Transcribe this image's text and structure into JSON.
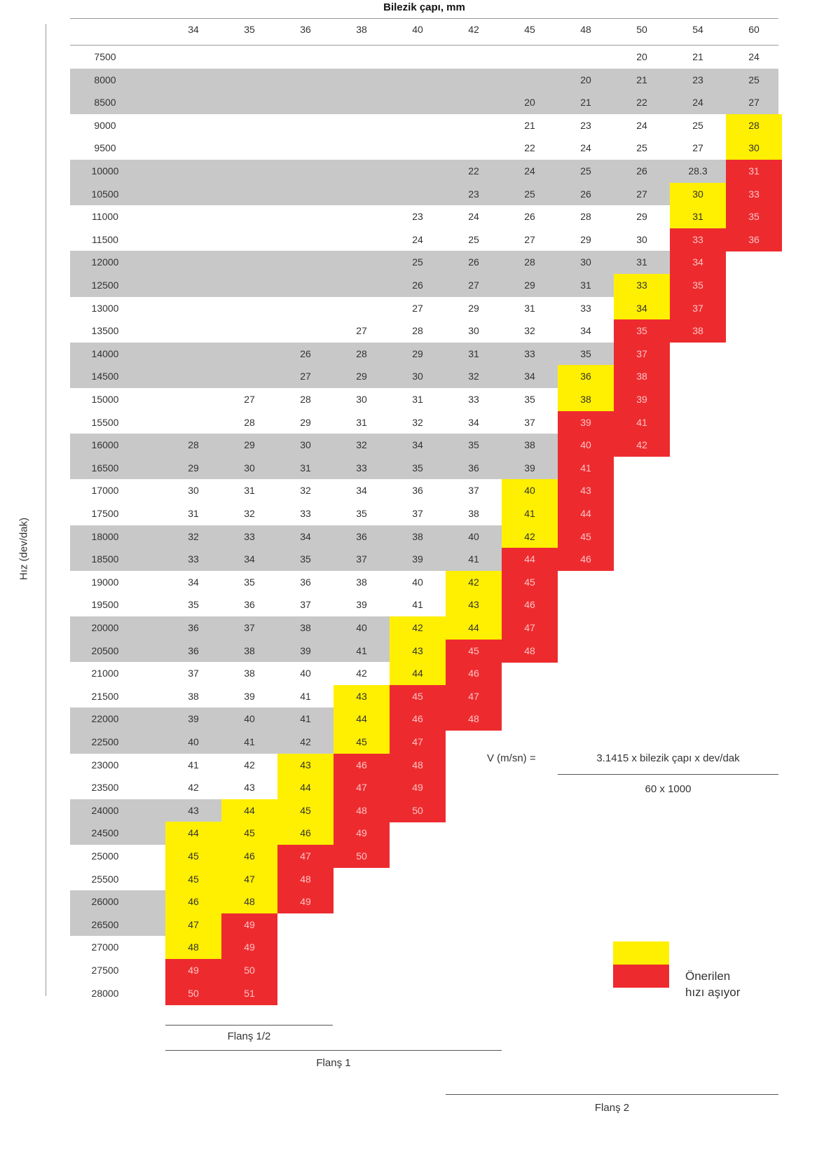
{
  "title": "Bilezik çapı, mm",
  "y_axis_label": "Hız (dev/dak)",
  "columns": [
    "34",
    "35",
    "36",
    "38",
    "40",
    "42",
    "45",
    "48",
    "50",
    "54",
    "60"
  ],
  "rows": [
    {
      "rpm": "7500",
      "cells": [
        "",
        "",
        "",
        "",
        "",
        "",
        "",
        "",
        "20",
        "21",
        "24"
      ],
      "colors": [
        "",
        "",
        "",
        "",
        "",
        "",
        "",
        "",
        "",
        "",
        ""
      ]
    },
    {
      "rpm": "8000",
      "cells": [
        "",
        "",
        "",
        "",
        "",
        "",
        "",
        "20",
        "21",
        "23",
        "25"
      ],
      "colors": [
        "",
        "",
        "",
        "",
        "",
        "",
        "",
        "",
        "",
        "",
        ""
      ]
    },
    {
      "rpm": "8500",
      "cells": [
        "",
        "",
        "",
        "",
        "",
        "",
        "20",
        "21",
        "22",
        "24",
        "27"
      ],
      "colors": [
        "",
        "",
        "",
        "",
        "",
        "",
        "",
        "",
        "",
        "",
        ""
      ]
    },
    {
      "rpm": "9000",
      "cells": [
        "",
        "",
        "",
        "",
        "",
        "",
        "21",
        "23",
        "24",
        "25",
        "28"
      ],
      "colors": [
        "",
        "",
        "",
        "",
        "",
        "",
        "",
        "",
        "",
        "",
        "y"
      ]
    },
    {
      "rpm": "9500",
      "cells": [
        "",
        "",
        "",
        "",
        "",
        "",
        "22",
        "24",
        "25",
        "27",
        "30"
      ],
      "colors": [
        "",
        "",
        "",
        "",
        "",
        "",
        "",
        "",
        "",
        "",
        "y"
      ]
    },
    {
      "rpm": "10000",
      "cells": [
        "",
        "",
        "",
        "",
        "",
        "22",
        "24",
        "25",
        "26",
        "28.3",
        "31"
      ],
      "colors": [
        "",
        "",
        "",
        "",
        "",
        "",
        "",
        "",
        "",
        "",
        "r"
      ]
    },
    {
      "rpm": "10500",
      "cells": [
        "",
        "",
        "",
        "",
        "",
        "23",
        "25",
        "26",
        "27",
        "30",
        "33"
      ],
      "colors": [
        "",
        "",
        "",
        "",
        "",
        "",
        "",
        "",
        "",
        "y",
        "r"
      ]
    },
    {
      "rpm": "11000",
      "cells": [
        "",
        "",
        "",
        "",
        "23",
        "24",
        "26",
        "28",
        "29",
        "31",
        "35"
      ],
      "colors": [
        "",
        "",
        "",
        "",
        "",
        "",
        "",
        "",
        "",
        "y",
        "r"
      ]
    },
    {
      "rpm": "11500",
      "cells": [
        "",
        "",
        "",
        "",
        "24",
        "25",
        "27",
        "29",
        "30",
        "33",
        "36"
      ],
      "colors": [
        "",
        "",
        "",
        "",
        "",
        "",
        "",
        "",
        "",
        "r",
        "r"
      ]
    },
    {
      "rpm": "12000",
      "cells": [
        "",
        "",
        "",
        "",
        "25",
        "26",
        "28",
        "30",
        "31",
        "34",
        ""
      ],
      "colors": [
        "",
        "",
        "",
        "",
        "",
        "",
        "",
        "",
        "",
        "r",
        ""
      ]
    },
    {
      "rpm": "12500",
      "cells": [
        "",
        "",
        "",
        "",
        "26",
        "27",
        "29",
        "31",
        "33",
        "35",
        ""
      ],
      "colors": [
        "",
        "",
        "",
        "",
        "",
        "",
        "",
        "",
        "y",
        "r",
        ""
      ]
    },
    {
      "rpm": "13000",
      "cells": [
        "",
        "",
        "",
        "",
        "27",
        "29",
        "31",
        "33",
        "34",
        "37",
        ""
      ],
      "colors": [
        "",
        "",
        "",
        "",
        "",
        "",
        "",
        "",
        "y",
        "r",
        ""
      ]
    },
    {
      "rpm": "13500",
      "cells": [
        "",
        "",
        "",
        "27",
        "28",
        "30",
        "32",
        "34",
        "35",
        "38",
        ""
      ],
      "colors": [
        "",
        "",
        "",
        "",
        "",
        "",
        "",
        "",
        "r",
        "r",
        ""
      ]
    },
    {
      "rpm": "14000",
      "cells": [
        "",
        "",
        "26",
        "28",
        "29",
        "31",
        "33",
        "35",
        "37",
        "",
        ""
      ],
      "colors": [
        "",
        "",
        "",
        "",
        "",
        "",
        "",
        "",
        "r",
        "",
        ""
      ]
    },
    {
      "rpm": "14500",
      "cells": [
        "",
        "",
        "27",
        "29",
        "30",
        "32",
        "34",
        "36",
        "38",
        "",
        ""
      ],
      "colors": [
        "",
        "",
        "",
        "",
        "",
        "",
        "",
        "y",
        "r",
        "",
        ""
      ]
    },
    {
      "rpm": "15000",
      "cells": [
        "",
        "27",
        "28",
        "30",
        "31",
        "33",
        "35",
        "38",
        "39",
        "",
        ""
      ],
      "colors": [
        "",
        "",
        "",
        "",
        "",
        "",
        "",
        "y",
        "r",
        "",
        ""
      ]
    },
    {
      "rpm": "15500",
      "cells": [
        "",
        "28",
        "29",
        "31",
        "32",
        "34",
        "37",
        "39",
        "41",
        "",
        ""
      ],
      "colors": [
        "",
        "",
        "",
        "",
        "",
        "",
        "",
        "r",
        "r",
        "",
        ""
      ]
    },
    {
      "rpm": "16000",
      "cells": [
        "28",
        "29",
        "30",
        "32",
        "34",
        "35",
        "38",
        "40",
        "42",
        "",
        ""
      ],
      "colors": [
        "",
        "",
        "",
        "",
        "",
        "",
        "",
        "r",
        "r",
        "",
        ""
      ]
    },
    {
      "rpm": "16500",
      "cells": [
        "29",
        "30",
        "31",
        "33",
        "35",
        "36",
        "39",
        "41",
        "",
        "",
        ""
      ],
      "colors": [
        "",
        "",
        "",
        "",
        "",
        "",
        "",
        "r",
        "",
        "",
        ""
      ]
    },
    {
      "rpm": "17000",
      "cells": [
        "30",
        "31",
        "32",
        "34",
        "36",
        "37",
        "40",
        "43",
        "",
        "",
        ""
      ],
      "colors": [
        "",
        "",
        "",
        "",
        "",
        "",
        "y",
        "r",
        "",
        "",
        ""
      ]
    },
    {
      "rpm": "17500",
      "cells": [
        "31",
        "32",
        "33",
        "35",
        "37",
        "38",
        "41",
        "44",
        "",
        "",
        ""
      ],
      "colors": [
        "",
        "",
        "",
        "",
        "",
        "",
        "y",
        "r",
        "",
        "",
        ""
      ]
    },
    {
      "rpm": "18000",
      "cells": [
        "32",
        "33",
        "34",
        "36",
        "38",
        "40",
        "42",
        "45",
        "",
        "",
        ""
      ],
      "colors": [
        "",
        "",
        "",
        "",
        "",
        "",
        "y",
        "r",
        "",
        "",
        ""
      ]
    },
    {
      "rpm": "18500",
      "cells": [
        "33",
        "34",
        "35",
        "37",
        "39",
        "41",
        "44",
        "46",
        "",
        "",
        ""
      ],
      "colors": [
        "",
        "",
        "",
        "",
        "",
        "",
        "r",
        "r",
        "",
        "",
        ""
      ]
    },
    {
      "rpm": "19000",
      "cells": [
        "34",
        "35",
        "36",
        "38",
        "40",
        "42",
        "45",
        "",
        "",
        "",
        ""
      ],
      "colors": [
        "",
        "",
        "",
        "",
        "",
        "y",
        "r",
        "",
        "",
        "",
        ""
      ]
    },
    {
      "rpm": "19500",
      "cells": [
        "35",
        "36",
        "37",
        "39",
        "41",
        "43",
        "46",
        "",
        "",
        "",
        ""
      ],
      "colors": [
        "",
        "",
        "",
        "",
        "",
        "y",
        "r",
        "",
        "",
        "",
        ""
      ]
    },
    {
      "rpm": "20000",
      "cells": [
        "36",
        "37",
        "38",
        "40",
        "42",
        "44",
        "47",
        "",
        "",
        "",
        ""
      ],
      "colors": [
        "",
        "",
        "",
        "",
        "y",
        "y",
        "r",
        "",
        "",
        "",
        ""
      ]
    },
    {
      "rpm": "20500",
      "cells": [
        "36",
        "38",
        "39",
        "41",
        "43",
        "45",
        "48",
        "",
        "",
        "",
        ""
      ],
      "colors": [
        "",
        "",
        "",
        "",
        "y",
        "r",
        "r",
        "",
        "",
        "",
        ""
      ]
    },
    {
      "rpm": "21000",
      "cells": [
        "37",
        "38",
        "40",
        "42",
        "44",
        "46",
        "",
        "",
        "",
        "",
        ""
      ],
      "colors": [
        "",
        "",
        "",
        "",
        "y",
        "r",
        "",
        "",
        "",
        "",
        ""
      ]
    },
    {
      "rpm": "21500",
      "cells": [
        "38",
        "39",
        "41",
        "43",
        "45",
        "47",
        "",
        "",
        "",
        "",
        ""
      ],
      "colors": [
        "",
        "",
        "",
        "y",
        "r",
        "r",
        "",
        "",
        "",
        "",
        ""
      ]
    },
    {
      "rpm": "22000",
      "cells": [
        "39",
        "40",
        "41",
        "44",
        "46",
        "48",
        "",
        "",
        "",
        "",
        ""
      ],
      "colors": [
        "",
        "",
        "",
        "y",
        "r",
        "r",
        "",
        "",
        "",
        "",
        ""
      ]
    },
    {
      "rpm": "22500",
      "cells": [
        "40",
        "41",
        "42",
        "45",
        "47",
        "",
        "",
        "",
        "",
        "",
        ""
      ],
      "colors": [
        "",
        "",
        "",
        "y",
        "r",
        "",
        "",
        "",
        "",
        "",
        ""
      ]
    },
    {
      "rpm": "23000",
      "cells": [
        "41",
        "42",
        "43",
        "46",
        "48",
        "",
        "",
        "",
        "",
        "",
        ""
      ],
      "colors": [
        "",
        "",
        "y",
        "r",
        "r",
        "",
        "",
        "",
        "",
        "",
        ""
      ]
    },
    {
      "rpm": "23500",
      "cells": [
        "42",
        "43",
        "44",
        "47",
        "49",
        "",
        "",
        "",
        "",
        "",
        ""
      ],
      "colors": [
        "",
        "",
        "y",
        "r",
        "r",
        "",
        "",
        "",
        "",
        "",
        ""
      ]
    },
    {
      "rpm": "24000",
      "cells": [
        "43",
        "44",
        "45",
        "48",
        "50",
        "",
        "",
        "",
        "",
        "",
        ""
      ],
      "colors": [
        "",
        "y",
        "y",
        "r",
        "r",
        "",
        "",
        "",
        "",
        "",
        ""
      ]
    },
    {
      "rpm": "24500",
      "cells": [
        "44",
        "45",
        "46",
        "49",
        "",
        "",
        "",
        "",
        "",
        "",
        ""
      ],
      "colors": [
        "y",
        "y",
        "y",
        "r",
        "",
        "",
        "",
        "",
        "",
        "",
        ""
      ]
    },
    {
      "rpm": "25000",
      "cells": [
        "45",
        "46",
        "47",
        "50",
        "",
        "",
        "",
        "",
        "",
        "",
        ""
      ],
      "colors": [
        "y",
        "y",
        "r",
        "r",
        "",
        "",
        "",
        "",
        "",
        "",
        ""
      ]
    },
    {
      "rpm": "25500",
      "cells": [
        "45",
        "47",
        "48",
        "",
        "",
        "",
        "",
        "",
        "",
        "",
        ""
      ],
      "colors": [
        "y",
        "y",
        "r",
        "",
        "",
        "",
        "",
        "",
        "",
        "",
        ""
      ]
    },
    {
      "rpm": "26000",
      "cells": [
        "46",
        "48",
        "49",
        "",
        "",
        "",
        "",
        "",
        "",
        "",
        ""
      ],
      "colors": [
        "y",
        "y",
        "r",
        "",
        "",
        "",
        "",
        "",
        "",
        "",
        ""
      ]
    },
    {
      "rpm": "26500",
      "cells": [
        "47",
        "49",
        "",
        "",
        "",
        "",
        "",
        "",
        "",
        "",
        ""
      ],
      "colors": [
        "y",
        "r",
        "",
        "",
        "",
        "",
        "",
        "",
        "",
        "",
        ""
      ]
    },
    {
      "rpm": "27000",
      "cells": [
        "48",
        "49",
        "",
        "",
        "",
        "",
        "",
        "",
        "",
        "",
        ""
      ],
      "colors": [
        "y",
        "r",
        "",
        "",
        "",
        "",
        "",
        "",
        "",
        "",
        ""
      ]
    },
    {
      "rpm": "27500",
      "cells": [
        "49",
        "50",
        "",
        "",
        "",
        "",
        "",
        "",
        "",
        "",
        ""
      ],
      "colors": [
        "r",
        "r",
        "",
        "",
        "",
        "",
        "",
        "",
        "",
        "",
        ""
      ]
    },
    {
      "rpm": "28000",
      "cells": [
        "50",
        "51",
        "",
        "",
        "",
        "",
        "",
        "",
        "",
        "",
        ""
      ],
      "colors": [
        "r",
        "r",
        "",
        "",
        "",
        "",
        "",
        "",
        "",
        "",
        ""
      ]
    }
  ],
  "formula": {
    "lhs": "V (m/sn) =",
    "numerator": "3.1415 x bilezik çapı x dev/dak",
    "denominator": "60 x 1000"
  },
  "legend": {
    "label_line1": "Önerilen",
    "label_line2": "hızı aşıyor"
  },
  "flanges": [
    "Flanş 1/2",
    "Flanş 1",
    "Flanş 2"
  ],
  "colors": {
    "yellow": "#ffef00",
    "red": "#ed2b2f",
    "band": "#c8c8c8"
  }
}
